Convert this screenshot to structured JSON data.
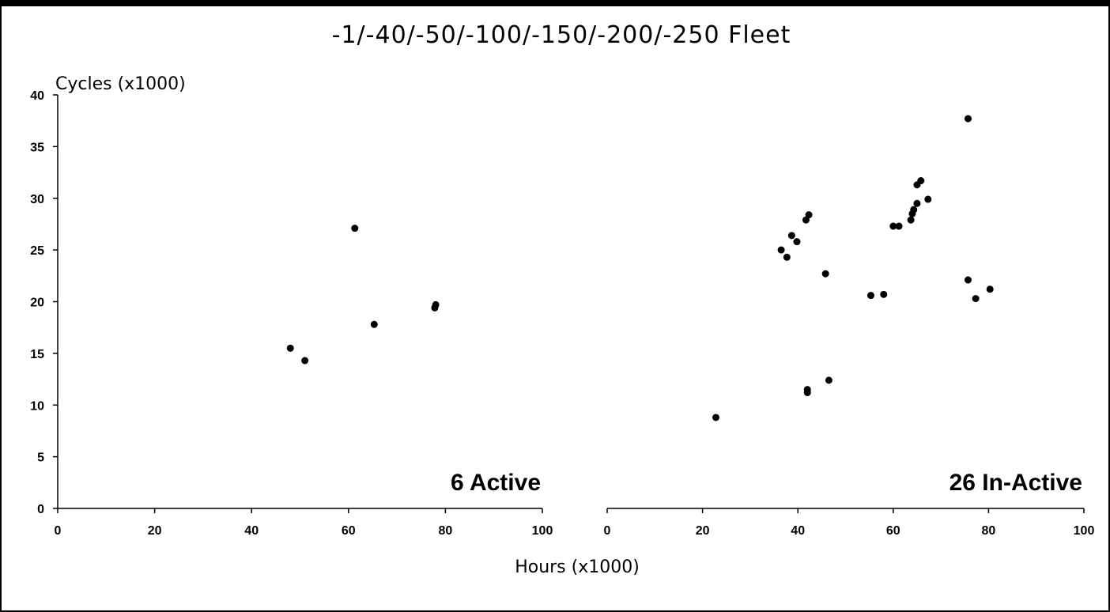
{
  "chart_data": {
    "type": "scatter",
    "title": "-1/-40/-50/-100/-150/-200/-250 Fleet",
    "xlabel": "Hours (x1000)",
    "ylabel": "Cycles (x1000)",
    "ylim": [
      0,
      40
    ],
    "yticks": [
      "0",
      "5",
      "10",
      "15",
      "20",
      "25",
      "30",
      "35",
      "40"
    ],
    "grid": false,
    "legend": "none",
    "marker_color": "#000000",
    "panels": [
      {
        "name": "active",
        "annotation": "6 Active",
        "xlim": [
          0,
          100
        ],
        "xticks": [
          "0",
          "20",
          "40",
          "60",
          "80",
          "100"
        ],
        "points": [
          {
            "x": 48.0,
            "y": 15.5
          },
          {
            "x": 51.0,
            "y": 14.3
          },
          {
            "x": 61.3,
            "y": 27.1
          },
          {
            "x": 65.3,
            "y": 17.8
          },
          {
            "x": 77.8,
            "y": 19.4
          },
          {
            "x": 78.0,
            "y": 19.7
          }
        ]
      },
      {
        "name": "in-active",
        "annotation": "26 In-Active",
        "xlim": [
          0,
          100
        ],
        "xticks": [
          "0",
          "20",
          "40",
          "60",
          "80",
          "100"
        ],
        "points": [
          {
            "x": 22.8,
            "y": 8.8
          },
          {
            "x": 36.5,
            "y": 25.0
          },
          {
            "x": 37.7,
            "y": 24.3
          },
          {
            "x": 38.7,
            "y": 26.4
          },
          {
            "x": 39.8,
            "y": 25.8
          },
          {
            "x": 41.7,
            "y": 27.9
          },
          {
            "x": 42.3,
            "y": 28.4
          },
          {
            "x": 42.0,
            "y": 11.5
          },
          {
            "x": 42.0,
            "y": 11.2
          },
          {
            "x": 45.8,
            "y": 22.7
          },
          {
            "x": 46.5,
            "y": 12.4
          },
          {
            "x": 55.3,
            "y": 20.6
          },
          {
            "x": 58.0,
            "y": 20.7
          },
          {
            "x": 60.0,
            "y": 27.3
          },
          {
            "x": 61.2,
            "y": 27.3
          },
          {
            "x": 63.7,
            "y": 27.9
          },
          {
            "x": 64.0,
            "y": 28.5
          },
          {
            "x": 64.3,
            "y": 28.9
          },
          {
            "x": 65.0,
            "y": 29.5
          },
          {
            "x": 65.0,
            "y": 31.3
          },
          {
            "x": 65.8,
            "y": 31.7
          },
          {
            "x": 67.3,
            "y": 29.9
          },
          {
            "x": 75.7,
            "y": 37.7
          },
          {
            "x": 75.7,
            "y": 22.1
          },
          {
            "x": 77.3,
            "y": 20.3
          },
          {
            "x": 80.3,
            "y": 21.2
          }
        ]
      }
    ]
  }
}
